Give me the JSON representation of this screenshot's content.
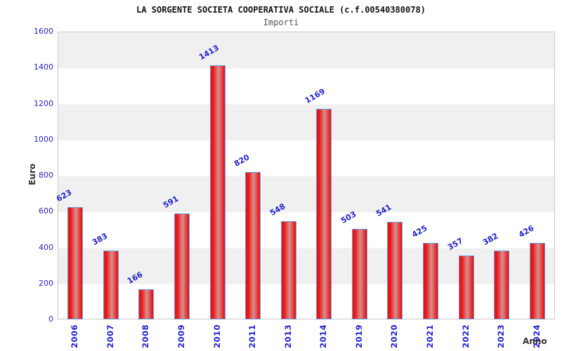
{
  "chart_data": {
    "type": "bar",
    "title": "LA SORGENTE SOCIETA COOPERATIVA SOCIALE (c.f.00540380078)",
    "subtitle": "Importi",
    "xlabel": "Anno",
    "ylabel": "Euro",
    "categories": [
      "2006",
      "2007",
      "2008",
      "2009",
      "2010",
      "2011",
      "2013",
      "2014",
      "2019",
      "2020",
      "2021",
      "2022",
      "2023",
      "2024"
    ],
    "values": [
      623,
      383,
      166,
      591,
      1413,
      820,
      548,
      1169,
      503,
      541,
      425,
      357,
      382,
      426
    ],
    "ylim": [
      0,
      1600
    ],
    "ytick_step": 200,
    "yticks": [
      0,
      200,
      400,
      600,
      800,
      1000,
      1200,
      1400,
      1600
    ],
    "grid": "horizontal-bands",
    "legend": null,
    "colors": {
      "label_blue": "#2222cc",
      "axis_text": "#333333",
      "title_color": "#111111",
      "subtitle_color": "#555555",
      "band_gray": "#f0f0f0",
      "band_white": "#ffffff",
      "plot_border": "#c8c8c8",
      "bar_red": "#ea1414",
      "bar_highlight": "#d79090",
      "bar_border": "#66a0dd"
    }
  }
}
